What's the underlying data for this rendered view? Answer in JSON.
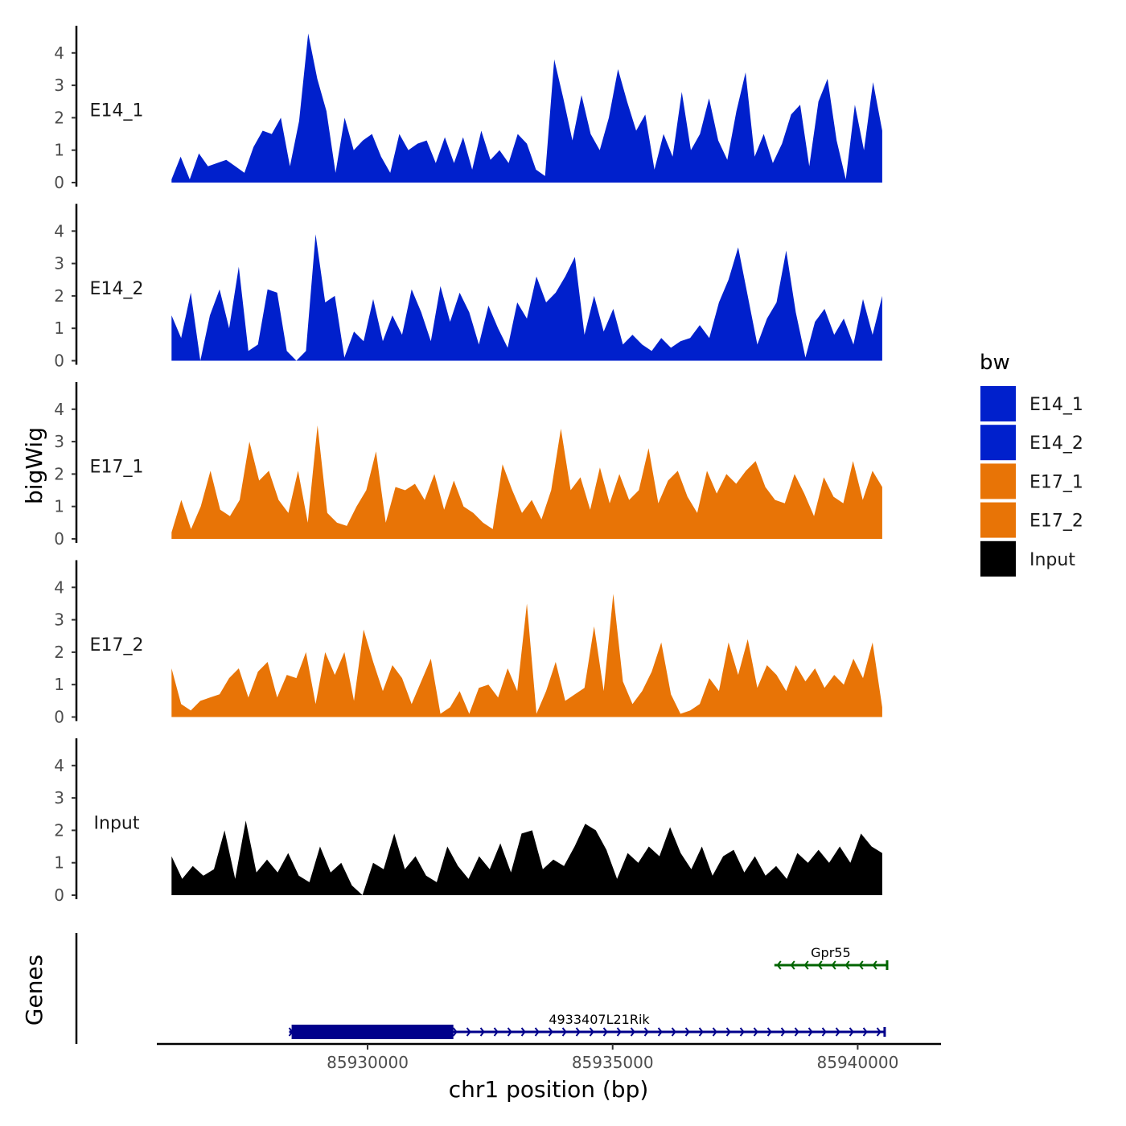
{
  "chart_data": {
    "type": "area",
    "title": "",
    "ylabel": "bigWig",
    "xlabel": "chr1 position (bp)",
    "genes_label": "Genes",
    "ylim": [
      0,
      4.8
    ],
    "yticks": [
      0,
      1,
      2,
      3,
      4
    ],
    "xlim": [
      85925700,
      85941700
    ],
    "xticks": [
      85930000,
      85935000,
      85940000
    ],
    "xtick_labels": [
      "85930000",
      "85935000",
      "85940000"
    ],
    "legend_title": "bw",
    "legend": [
      {
        "name": "E14_1",
        "color": "#0020CC"
      },
      {
        "name": "E14_2",
        "color": "#0020CC"
      },
      {
        "name": "E17_1",
        "color": "#E87406"
      },
      {
        "name": "E17_2",
        "color": "#E87406"
      },
      {
        "name": "Input",
        "color": "#000000"
      }
    ],
    "x_start": 85926000,
    "x_end": 85940500,
    "tracks": [
      {
        "name": "E14_1",
        "color": "#0020CC",
        "values": [
          0.1,
          0.8,
          0.1,
          0.9,
          0.5,
          0.6,
          0.7,
          0.5,
          0.3,
          1.1,
          1.6,
          1.5,
          2.0,
          0.5,
          1.9,
          4.6,
          3.2,
          2.2,
          0.3,
          2.0,
          1.0,
          1.3,
          1.5,
          0.8,
          0.3,
          1.5,
          1.0,
          1.2,
          1.3,
          0.6,
          1.4,
          0.6,
          1.4,
          0.4,
          1.6,
          0.7,
          1.0,
          0.6,
          1.5,
          1.2,
          0.4,
          0.2,
          3.8,
          2.6,
          1.3,
          2.7,
          1.5,
          1.0,
          2.0,
          3.5,
          2.5,
          1.6,
          2.1,
          0.4,
          1.5,
          0.8,
          2.8,
          1.0,
          1.5,
          2.6,
          1.3,
          0.7,
          2.2,
          3.4,
          0.8,
          1.5,
          0.6,
          1.2,
          2.1,
          2.4,
          0.5,
          2.5,
          3.2,
          1.3,
          0.1,
          2.4,
          1.0,
          3.1,
          1.6
        ]
      },
      {
        "name": "E14_2",
        "color": "#0020CC",
        "values": [
          1.4,
          0.7,
          2.1,
          0.0,
          1.4,
          2.2,
          1.0,
          2.9,
          0.3,
          0.5,
          2.2,
          2.1,
          0.3,
          0.0,
          0.3,
          3.9,
          1.8,
          2.0,
          0.1,
          0.9,
          0.6,
          1.9,
          0.6,
          1.4,
          0.8,
          2.2,
          1.5,
          0.6,
          2.3,
          1.2,
          2.1,
          1.5,
          0.5,
          1.7,
          1.0,
          0.4,
          1.8,
          1.3,
          2.6,
          1.8,
          2.1,
          2.6,
          3.2,
          0.8,
          2.0,
          0.9,
          1.6,
          0.5,
          0.8,
          0.5,
          0.3,
          0.7,
          0.4,
          0.6,
          0.7,
          1.1,
          0.7,
          1.8,
          2.5,
          3.5,
          2.0,
          0.5,
          1.3,
          1.8,
          3.4,
          1.5,
          0.1,
          1.2,
          1.6,
          0.8,
          1.3,
          0.5,
          1.9,
          0.8,
          2.0
        ]
      },
      {
        "name": "E17_1",
        "color": "#E87406",
        "values": [
          0.2,
          1.2,
          0.3,
          1.0,
          2.1,
          0.9,
          0.7,
          1.2,
          3.0,
          1.8,
          2.1,
          1.2,
          0.8,
          2.1,
          0.5,
          3.5,
          0.8,
          0.5,
          0.4,
          1.0,
          1.5,
          2.7,
          0.5,
          1.6,
          1.5,
          1.7,
          1.2,
          2.0,
          0.9,
          1.8,
          1.0,
          0.8,
          0.5,
          0.3,
          2.3,
          1.5,
          0.8,
          1.2,
          0.6,
          1.5,
          3.4,
          1.5,
          1.9,
          0.9,
          2.2,
          1.1,
          2.0,
          1.2,
          1.5,
          2.8,
          1.1,
          1.8,
          2.1,
          1.3,
          0.8,
          2.1,
          1.4,
          2.0,
          1.7,
          2.1,
          2.4,
          1.6,
          1.2,
          1.1,
          2.0,
          1.4,
          0.7,
          1.9,
          1.3,
          1.1,
          2.4,
          1.2,
          2.1,
          1.6
        ]
      },
      {
        "name": "E17_2",
        "color": "#E87406",
        "values": [
          1.5,
          0.4,
          0.2,
          0.5,
          0.6,
          0.7,
          1.2,
          1.5,
          0.6,
          1.4,
          1.7,
          0.6,
          1.3,
          1.2,
          2.0,
          0.4,
          2.0,
          1.3,
          2.0,
          0.5,
          2.7,
          1.7,
          0.8,
          1.6,
          1.2,
          0.4,
          1.1,
          1.8,
          0.1,
          0.3,
          0.8,
          0.1,
          0.9,
          1.0,
          0.6,
          1.5,
          0.8,
          3.5,
          0.1,
          0.8,
          1.7,
          0.5,
          0.7,
          0.9,
          2.8,
          0.8,
          3.8,
          1.1,
          0.4,
          0.8,
          1.4,
          2.3,
          0.7,
          0.1,
          0.2,
          0.4,
          1.2,
          0.8,
          2.3,
          1.3,
          2.4,
          0.9,
          1.6,
          1.3,
          0.8,
          1.6,
          1.1,
          1.5,
          0.9,
          1.3,
          1.0,
          1.8,
          1.2,
          2.3,
          0.3
        ]
      },
      {
        "name": "Input",
        "color": "#000000",
        "values": [
          1.2,
          0.5,
          0.9,
          0.6,
          0.8,
          2.0,
          0.5,
          2.3,
          0.7,
          1.1,
          0.7,
          1.3,
          0.6,
          0.4,
          1.5,
          0.7,
          1.0,
          0.3,
          0.0,
          1.0,
          0.8,
          1.9,
          0.8,
          1.2,
          0.6,
          0.4,
          1.5,
          0.9,
          0.5,
          1.2,
          0.8,
          1.6,
          0.7,
          1.9,
          2.0,
          0.8,
          1.1,
          0.9,
          1.5,
          2.2,
          2.0,
          1.4,
          0.5,
          1.3,
          1.0,
          1.5,
          1.2,
          2.1,
          1.3,
          0.8,
          1.5,
          0.6,
          1.2,
          1.4,
          0.7,
          1.2,
          0.6,
          0.9,
          0.5,
          1.3,
          1.0,
          1.4,
          1.0,
          1.5,
          1.0,
          1.9,
          1.5,
          1.3
        ]
      }
    ],
    "genes": [
      {
        "name": "Gpr55",
        "strand": "-",
        "start": 85938300,
        "end": 85940600,
        "color": "#006400",
        "row": 0
      },
      {
        "name": "4933407L21Rik",
        "strand": "+",
        "start": 85928400,
        "end": 85940550,
        "color": "#00008B",
        "row": 1,
        "thick_start": 85928450,
        "thick_end": 85931750
      }
    ]
  }
}
